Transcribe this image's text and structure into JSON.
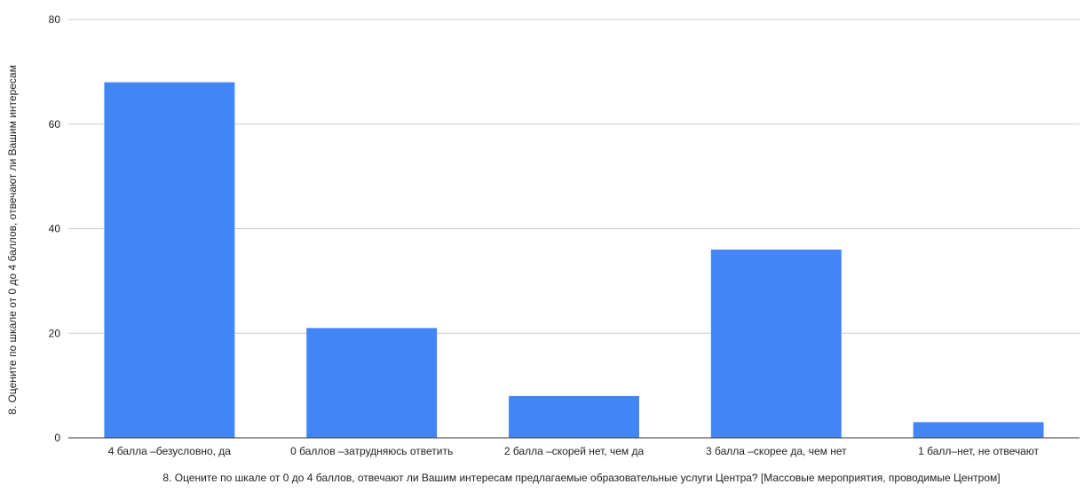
{
  "chart_data": {
    "type": "bar",
    "title": "",
    "xlabel": "8.   Оцените по шкале от 0 до 4 баллов, отвечают ли Вашим интересам предлагаемые образовательные услуги Центра?   [Массовые мероприятия, проводимые Центром]",
    "ylabel": "8.   Оцените по шкале от 0 до 4 баллов, отвечают ли Вашим интересам",
    "categories": [
      "4 балла –безусловно, да",
      "0 баллов –затрудняюсь ответить",
      "2 балла –скорей нет, чем да",
      "3 балла –скорее да, чем нет",
      "1 балл–нет, не отвечают"
    ],
    "values": [
      68,
      21,
      8,
      36,
      3
    ],
    "ylim": [
      0,
      80
    ],
    "yticks": [
      "0",
      "20",
      "40",
      "60",
      "80"
    ],
    "grid": true,
    "bar_color": "#4285f4",
    "grid_color": "#cccccc",
    "axis_color": "#333333"
  }
}
